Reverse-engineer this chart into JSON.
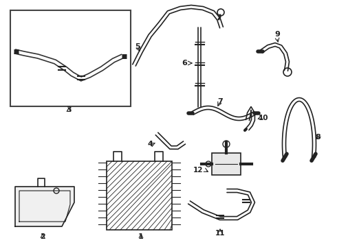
{
  "background_color": "#ffffff",
  "line_color": "#222222",
  "figsize": [
    4.9,
    3.6
  ],
  "dpi": 100
}
